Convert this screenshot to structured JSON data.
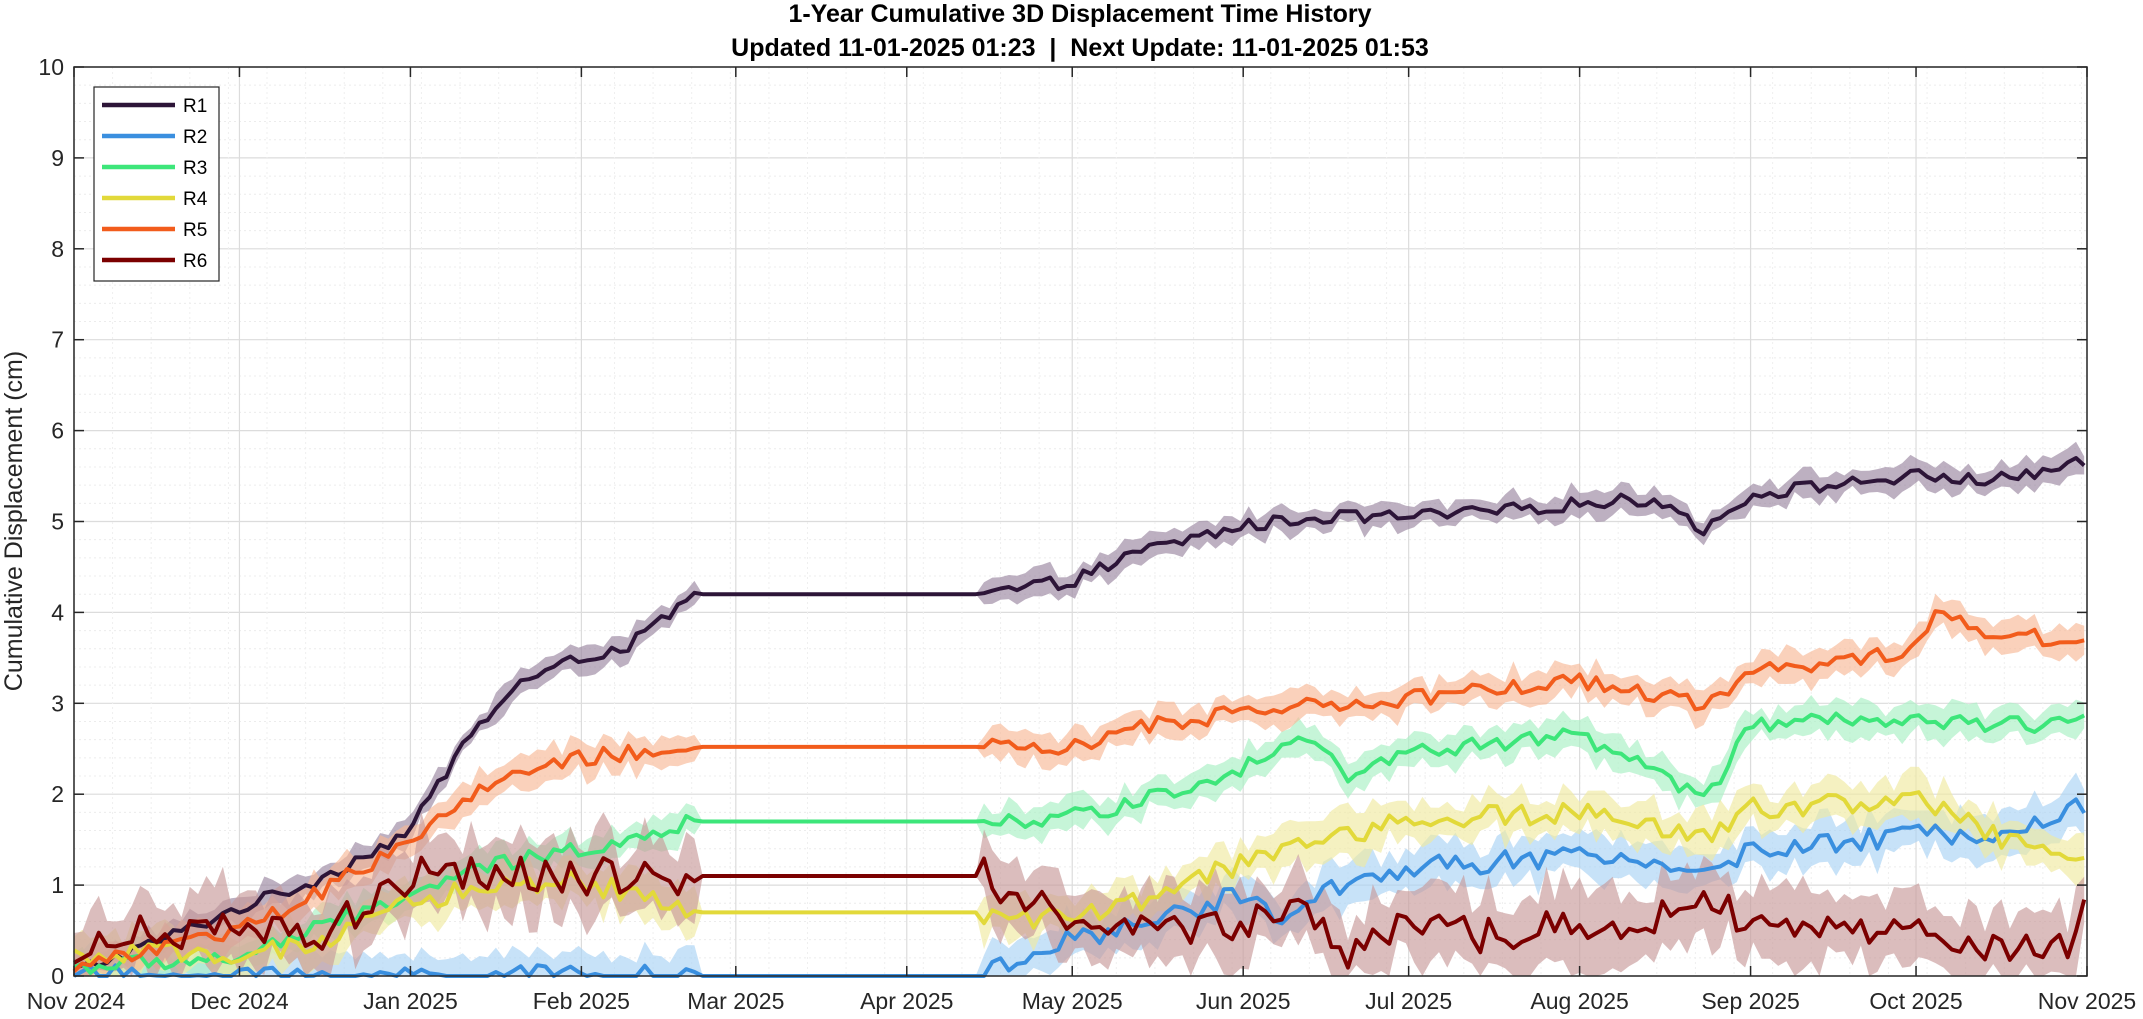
{
  "chart_data": {
    "type": "line",
    "title": "1-Year Cumulative 3D Displacement Time History",
    "subtitle": "Updated 11-01-2025 01:23  |  Next Update: 11-01-2025 01:53",
    "xlabel": "",
    "ylabel": "Cumulative Displacement (cm)",
    "xlim": [
      "2024-11-01",
      "2025-11-01"
    ],
    "ylim": [
      0,
      10
    ],
    "x_ticks": [
      "Nov 2024",
      "Dec 2024",
      "Jan 2025",
      "Feb 2025",
      "Mar 2025",
      "Apr 2025",
      "May 2025",
      "Jun 2025",
      "Jul 2025",
      "Aug 2025",
      "Sep 2025",
      "Oct 2025",
      "Nov 2025"
    ],
    "y_ticks": [
      "0",
      "1",
      "2",
      "3",
      "4",
      "5",
      "6",
      "7",
      "8",
      "9",
      "10"
    ],
    "grid": true,
    "minor_grid": true,
    "legend": "top-left",
    "data_gap": [
      "2025-02-22",
      "2025-04-15"
    ],
    "series": [
      {
        "name": "R1",
        "color": "#2d1538",
        "band_color": "#9a869f",
        "x": [
          "2024-11-01",
          "2024-11-15",
          "2024-12-01",
          "2024-12-15",
          "2025-01-01",
          "2025-01-10",
          "2025-01-20",
          "2025-02-01",
          "2025-02-10",
          "2025-02-22",
          "2025-04-15",
          "2025-05-01",
          "2025-05-15",
          "2025-06-01",
          "2025-06-15",
          "2025-07-01",
          "2025-07-15",
          "2025-08-01",
          "2025-08-15",
          "2025-08-24",
          "2025-09-01",
          "2025-09-15",
          "2025-10-01",
          "2025-10-15",
          "2025-11-01"
        ],
        "values": [
          0.05,
          0.35,
          0.75,
          1.05,
          1.6,
          2.5,
          3.2,
          3.5,
          3.65,
          4.2,
          4.2,
          4.35,
          4.7,
          4.95,
          5.05,
          5.05,
          5.1,
          5.2,
          5.25,
          4.9,
          5.3,
          5.4,
          5.5,
          5.45,
          5.65
        ],
        "band": 0.12
      },
      {
        "name": "R2",
        "color": "#3a8fdf",
        "band_color": "#a9d2f5",
        "x": [
          "2024-11-01",
          "2025-02-22",
          "2025-04-15",
          "2025-05-01",
          "2025-05-15",
          "2025-06-01",
          "2025-06-10",
          "2025-06-15",
          "2025-07-01",
          "2025-07-15",
          "2025-08-01",
          "2025-08-24",
          "2025-09-01",
          "2025-09-15",
          "2025-10-01",
          "2025-10-15",
          "2025-11-01"
        ],
        "values": [
          0.0,
          0.0,
          0.0,
          0.4,
          0.6,
          0.9,
          0.6,
          0.9,
          1.2,
          1.25,
          1.3,
          1.2,
          1.35,
          1.45,
          1.55,
          1.6,
          1.9
        ],
        "band": 0.2
      },
      {
        "name": "R3",
        "color": "#3de67a",
        "band_color": "#a8f0c3",
        "x": [
          "2024-11-01",
          "2024-12-01",
          "2025-01-01",
          "2025-01-15",
          "2025-02-01",
          "2025-02-22",
          "2025-04-15",
          "2025-05-01",
          "2025-05-15",
          "2025-06-01",
          "2025-06-12",
          "2025-06-20",
          "2025-07-01",
          "2025-07-15",
          "2025-08-01",
          "2025-08-24",
          "2025-09-01",
          "2025-09-15",
          "2025-10-01",
          "2025-10-15",
          "2025-11-01"
        ],
        "values": [
          0.1,
          0.2,
          0.9,
          1.2,
          1.4,
          1.7,
          1.7,
          1.75,
          1.95,
          2.3,
          2.7,
          2.2,
          2.45,
          2.55,
          2.65,
          1.95,
          2.75,
          2.8,
          2.8,
          2.75,
          2.8
        ],
        "band": 0.15
      },
      {
        "name": "R4",
        "color": "#e2d93a",
        "band_color": "#f0eaa0",
        "x": [
          "2024-11-01",
          "2024-12-15",
          "2025-01-01",
          "2025-01-15",
          "2025-02-01",
          "2025-02-22",
          "2025-04-15",
          "2025-05-01",
          "2025-05-15",
          "2025-06-01",
          "2025-06-15",
          "2025-07-01",
          "2025-07-15",
          "2025-08-01",
          "2025-08-24",
          "2025-09-01",
          "2025-09-15",
          "2025-10-01",
          "2025-10-15",
          "2025-11-01"
        ],
        "values": [
          0.2,
          0.3,
          0.8,
          1.0,
          1.05,
          0.7,
          0.7,
          0.6,
          0.85,
          1.25,
          1.5,
          1.7,
          1.75,
          1.8,
          1.5,
          1.85,
          1.9,
          1.95,
          1.55,
          1.25
        ],
        "band": 0.2
      },
      {
        "name": "R5",
        "color": "#f25c1c",
        "band_color": "#f7b896",
        "x": [
          "2024-11-01",
          "2024-11-15",
          "2024-12-01",
          "2024-12-15",
          "2025-01-01",
          "2025-01-15",
          "2025-02-01",
          "2025-02-10",
          "2025-02-22",
          "2025-04-15",
          "2025-05-01",
          "2025-05-15",
          "2025-06-01",
          "2025-06-15",
          "2025-06-25",
          "2025-07-01",
          "2025-07-15",
          "2025-08-01",
          "2025-08-24",
          "2025-09-01",
          "2025-09-15",
          "2025-10-01",
          "2025-10-05",
          "2025-10-15",
          "2025-11-01"
        ],
        "values": [
          0.1,
          0.3,
          0.5,
          0.9,
          1.5,
          2.1,
          2.4,
          2.45,
          2.52,
          2.52,
          2.5,
          2.75,
          2.9,
          3.05,
          2.9,
          3.05,
          3.15,
          3.25,
          3.0,
          3.35,
          3.45,
          3.6,
          4.0,
          3.75,
          3.7
        ],
        "band": 0.15
      },
      {
        "name": "R6",
        "color": "#7b0000",
        "band_color": "#c79a9a",
        "x": [
          "2024-11-01",
          "2024-11-10",
          "2024-11-20",
          "2024-12-01",
          "2024-12-15",
          "2025-01-01",
          "2025-02-22",
          "2025-04-15",
          "2025-05-01",
          "2025-05-15",
          "2025-06-01",
          "2025-06-10",
          "2025-06-20",
          "2025-07-01",
          "2025-07-15",
          "2025-08-01",
          "2025-08-15",
          "2025-08-24",
          "2025-09-01",
          "2025-09-15",
          "2025-10-01",
          "2025-10-15",
          "2025-10-28",
          "2025-11-01"
        ],
        "values": [
          0.1,
          0.55,
          0.4,
          0.5,
          0.4,
          1.1,
          1.1,
          1.1,
          0.6,
          0.5,
          0.55,
          0.7,
          0.3,
          0.5,
          0.45,
          0.55,
          0.6,
          0.95,
          0.45,
          0.5,
          0.5,
          0.3,
          0.25,
          1.05
        ],
        "band": 0.35
      }
    ]
  }
}
